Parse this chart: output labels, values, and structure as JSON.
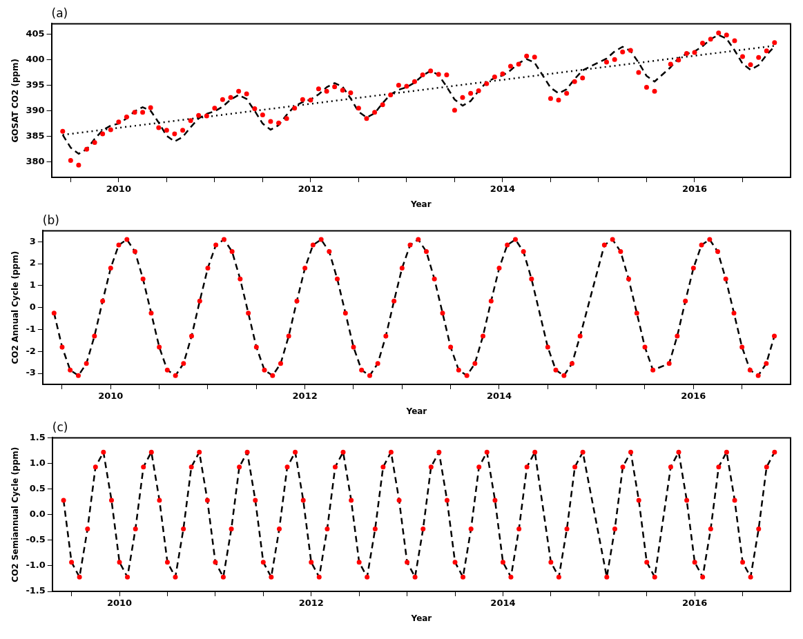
{
  "chart_data": [
    {
      "type": "line",
      "title": "(a)",
      "xlabel": "Year",
      "ylabel": "GOSAT CO2 (ppm)",
      "legend": false,
      "grid": false,
      "x": [
        2009.417,
        2009.5,
        2009.583,
        2009.667,
        2009.75,
        2009.833,
        2009.917,
        2010.0,
        2010.083,
        2010.167,
        2010.25,
        2010.333,
        2010.417,
        2010.5,
        2010.583,
        2010.667,
        2010.75,
        2010.833,
        2010.917,
        2011.0,
        2011.083,
        2011.167,
        2011.25,
        2011.333,
        2011.417,
        2011.5,
        2011.583,
        2011.667,
        2011.75,
        2011.833,
        2011.917,
        2012.0,
        2012.083,
        2012.167,
        2012.25,
        2012.333,
        2012.417,
        2012.5,
        2012.583,
        2012.667,
        2012.75,
        2012.833,
        2012.917,
        2013.0,
        2013.083,
        2013.167,
        2013.25,
        2013.333,
        2013.417,
        2013.5,
        2013.583,
        2013.667,
        2013.75,
        2013.833,
        2013.917,
        2014.0,
        2014.083,
        2014.167,
        2014.25,
        2014.333,
        2014.5,
        2014.583,
        2014.667,
        2014.75,
        2014.833,
        2015.083,
        2015.167,
        2015.25,
        2015.333,
        2015.417,
        2015.5,
        2015.583,
        2015.75,
        2015.833,
        2015.917,
        2016.0,
        2016.083,
        2016.167,
        2016.25,
        2016.333,
        2016.417,
        2016.5,
        2016.583,
        2016.667,
        2016.75,
        2016.833
      ],
      "xlim": [
        2009.3,
        2017.0
      ],
      "xticks": [
        {
          "value": 2009.5,
          "label": null
        },
        2010,
        {
          "value": 2010.5,
          "label": null
        },
        {
          "value": 2011,
          "label": null
        },
        {
          "value": 2011.5,
          "label": null
        },
        2012,
        {
          "value": 2012.5,
          "label": null
        },
        {
          "value": 2013,
          "label": null
        },
        {
          "value": 2013.5,
          "label": null
        },
        2014,
        {
          "value": 2014.5,
          "label": null
        },
        {
          "value": 2015,
          "label": null
        },
        {
          "value": 2015.5,
          "label": null
        },
        2016,
        {
          "value": 2016.5,
          "label": null
        }
      ],
      "ylim": [
        377,
        407
      ],
      "yticks": [
        380,
        385,
        390,
        395,
        400,
        405
      ],
      "series": [
        {
          "type": "scatter",
          "color": "#ff0000",
          "marker": "circle",
          "values": [
            386.0,
            380.3,
            379.4,
            382.5,
            383.8,
            385.5,
            386.3,
            387.8,
            388.8,
            389.7,
            389.7,
            390.6,
            386.7,
            386.2,
            385.5,
            386.2,
            388.1,
            389.1,
            389.0,
            390.5,
            392.2,
            392.6,
            393.8,
            393.3,
            390.4,
            389.2,
            387.9,
            387.6,
            388.5,
            390.5,
            392.2,
            392.1,
            394.3,
            393.8,
            394.7,
            394.0,
            393.5,
            390.5,
            388.5,
            389.7,
            391.2,
            393.1,
            395.0,
            394.8,
            395.7,
            397.0,
            397.8,
            397.1,
            397.0,
            390.1,
            392.6,
            393.4,
            393.9,
            395.3,
            396.6,
            397.2,
            398.7,
            399.1,
            400.7,
            400.5,
            392.4,
            392.1,
            393.4,
            395.7,
            396.4,
            399.5,
            400.0,
            401.5,
            401.8,
            397.5,
            394.6,
            393.8,
            399.1,
            399.9,
            401.2,
            401.4,
            403.2,
            404.0,
            405.2,
            404.8,
            403.7,
            400.6,
            399.0,
            400.4,
            401.7,
            403.3
          ]
        },
        {
          "type": "line",
          "color": "#000000",
          "line_style": "dashed",
          "marker": "none",
          "values": [
            385.3,
            382.8,
            381.6,
            382.5,
            384.5,
            386.2,
            387.1,
            387.5,
            388.5,
            389.9,
            390.7,
            390.0,
            387.7,
            385.1,
            384.0,
            384.9,
            386.8,
            388.5,
            389.4,
            389.9,
            390.8,
            392.2,
            393.1,
            392.3,
            390.0,
            387.5,
            386.3,
            387.2,
            389.2,
            390.9,
            391.7,
            392.2,
            393.2,
            394.6,
            395.4,
            394.7,
            392.4,
            389.8,
            388.7,
            389.5,
            391.5,
            393.2,
            394.1,
            394.6,
            395.5,
            396.9,
            397.8,
            397.0,
            394.7,
            392.2,
            391.0,
            391.9,
            393.9,
            395.6,
            396.4,
            396.9,
            397.9,
            399.3,
            400.1,
            399.4,
            394.5,
            393.4,
            394.2,
            396.2,
            397.9,
            400.2,
            401.6,
            402.5,
            401.7,
            399.4,
            396.8,
            395.7,
            398.5,
            400.3,
            401.1,
            401.6,
            402.6,
            404.0,
            404.8,
            404.1,
            401.8,
            399.2,
            398.0,
            398.9,
            400.9,
            402.6
          ]
        },
        {
          "type": "line",
          "color": "#000000",
          "line_style": "dotted",
          "marker": "none",
          "x": [
            2009.417,
            2016.833
          ],
          "values": [
            385.3,
            402.7
          ]
        }
      ]
    },
    {
      "type": "line",
      "title": "(b)",
      "xlabel": "Year",
      "ylabel": "CO2 Annual Cycle (ppm)",
      "legend": false,
      "grid": false,
      "x": [
        2009.417,
        2009.5,
        2009.583,
        2009.667,
        2009.75,
        2009.833,
        2009.917,
        2010.0,
        2010.083,
        2010.167,
        2010.25,
        2010.333,
        2010.417,
        2010.5,
        2010.583,
        2010.667,
        2010.75,
        2010.833,
        2010.917,
        2011.0,
        2011.083,
        2011.167,
        2011.25,
        2011.333,
        2011.417,
        2011.5,
        2011.583,
        2011.667,
        2011.75,
        2011.833,
        2011.917,
        2012.0,
        2012.083,
        2012.167,
        2012.25,
        2012.333,
        2012.417,
        2012.5,
        2012.583,
        2012.667,
        2012.75,
        2012.833,
        2012.917,
        2013.0,
        2013.083,
        2013.167,
        2013.25,
        2013.333,
        2013.417,
        2013.5,
        2013.583,
        2013.667,
        2013.75,
        2013.833,
        2013.917,
        2014.0,
        2014.083,
        2014.167,
        2014.25,
        2014.333,
        2014.5,
        2014.583,
        2014.667,
        2014.75,
        2014.833,
        2015.083,
        2015.167,
        2015.25,
        2015.333,
        2015.417,
        2015.5,
        2015.583,
        2015.75,
        2015.833,
        2015.917,
        2016.0,
        2016.083,
        2016.167,
        2016.25,
        2016.333,
        2016.417,
        2016.5,
        2016.583,
        2016.667,
        2016.75,
        2016.833
      ],
      "xlim": [
        2009.3,
        2017.0
      ],
      "xticks": [
        {
          "value": 2009.5,
          "label": null
        },
        2010,
        {
          "value": 2010.5,
          "label": null
        },
        {
          "value": 2011,
          "label": null
        },
        {
          "value": 2011.5,
          "label": null
        },
        2012,
        {
          "value": 2012.5,
          "label": null
        },
        {
          "value": 2013,
          "label": null
        },
        {
          "value": 2013.5,
          "label": null
        },
        2014,
        {
          "value": 2014.5,
          "label": null
        },
        {
          "value": 2015,
          "label": null
        },
        {
          "value": 2015.5,
          "label": null
        },
        2016,
        {
          "value": 2016.5,
          "label": null
        }
      ],
      "ylim": [
        -3.5,
        3.5
      ],
      "yticks": [
        -3,
        -2,
        -1,
        0,
        1,
        2,
        3
      ],
      "series": [
        {
          "type": "line",
          "color": "#000000",
          "line_style": "dashed",
          "marker": "none",
          "values": [
            -0.25,
            -1.8,
            -2.85,
            -3.1,
            -2.55,
            -1.3,
            0.3,
            1.8,
            2.85,
            3.1,
            2.55,
            1.3,
            -0.25,
            -1.8,
            -2.85,
            -3.1,
            -2.55,
            -1.3,
            0.3,
            1.8,
            2.85,
            3.1,
            2.55,
            1.3,
            -0.25,
            -1.8,
            -2.85,
            -3.1,
            -2.55,
            -1.3,
            0.3,
            1.8,
            2.85,
            3.1,
            2.55,
            1.3,
            -0.25,
            -1.8,
            -2.85,
            -3.1,
            -2.55,
            -1.3,
            0.3,
            1.8,
            2.85,
            3.1,
            2.55,
            1.3,
            -0.25,
            -1.8,
            -2.85,
            -3.1,
            -2.55,
            -1.3,
            0.3,
            1.8,
            2.85,
            3.1,
            2.55,
            1.3,
            -1.8,
            -2.85,
            -3.1,
            -2.55,
            -1.3,
            2.85,
            3.1,
            2.55,
            1.3,
            -0.25,
            -1.8,
            -2.85,
            -2.55,
            -1.3,
            0.3,
            1.8,
            2.85,
            3.1,
            2.55,
            1.3,
            -0.25,
            -1.8,
            -2.85,
            -3.1,
            -2.55,
            -1.3
          ]
        },
        {
          "type": "scatter",
          "color": "#ff0000",
          "marker": "circle",
          "values": [
            -0.25,
            -1.8,
            -2.85,
            -3.1,
            -2.55,
            -1.3,
            0.3,
            1.8,
            2.85,
            3.1,
            2.55,
            1.3,
            -0.25,
            -1.8,
            -2.85,
            -3.1,
            -2.55,
            -1.3,
            0.3,
            1.8,
            2.85,
            3.1,
            2.55,
            1.3,
            -0.25,
            -1.8,
            -2.85,
            -3.1,
            -2.55,
            -1.3,
            0.3,
            1.8,
            2.85,
            3.1,
            2.55,
            1.3,
            -0.25,
            -1.8,
            -2.85,
            -3.1,
            -2.55,
            -1.3,
            0.3,
            1.8,
            2.85,
            3.1,
            2.55,
            1.3,
            -0.25,
            -1.8,
            -2.85,
            -3.1,
            -2.55,
            -1.3,
            0.3,
            1.8,
            2.85,
            3.1,
            2.55,
            1.3,
            -1.8,
            -2.85,
            -3.1,
            -2.55,
            -1.3,
            2.85,
            3.1,
            2.55,
            1.3,
            -0.25,
            -1.8,
            -2.85,
            -2.55,
            -1.3,
            0.3,
            1.8,
            2.85,
            3.1,
            2.55,
            1.3,
            -0.25,
            -1.8,
            -2.85,
            -3.1,
            -2.55,
            -1.3
          ]
        }
      ]
    },
    {
      "type": "line",
      "title": "(c)",
      "xlabel": "Year",
      "ylabel": "CO2 Semiannual Cycle (ppm)",
      "legend": false,
      "grid": false,
      "x": [
        2009.417,
        2009.5,
        2009.583,
        2009.667,
        2009.75,
        2009.833,
        2009.917,
        2010.0,
        2010.083,
        2010.167,
        2010.25,
        2010.333,
        2010.417,
        2010.5,
        2010.583,
        2010.667,
        2010.75,
        2010.833,
        2010.917,
        2011.0,
        2011.083,
        2011.167,
        2011.25,
        2011.333,
        2011.417,
        2011.5,
        2011.583,
        2011.667,
        2011.75,
        2011.833,
        2011.917,
        2012.0,
        2012.083,
        2012.167,
        2012.25,
        2012.333,
        2012.417,
        2012.5,
        2012.583,
        2012.667,
        2012.75,
        2012.833,
        2012.917,
        2013.0,
        2013.083,
        2013.167,
        2013.25,
        2013.333,
        2013.417,
        2013.5,
        2013.583,
        2013.667,
        2013.75,
        2013.833,
        2013.917,
        2014.0,
        2014.083,
        2014.167,
        2014.25,
        2014.333,
        2014.5,
        2014.583,
        2014.667,
        2014.75,
        2014.833,
        2015.083,
        2015.167,
        2015.25,
        2015.333,
        2015.417,
        2015.5,
        2015.583,
        2015.75,
        2015.833,
        2015.917,
        2016.0,
        2016.083,
        2016.167,
        2016.25,
        2016.333,
        2016.417,
        2016.5,
        2016.583,
        2016.667,
        2016.75,
        2016.833
      ],
      "xlim": [
        2009.3,
        2017.0
      ],
      "xticks": [
        {
          "value": 2009.5,
          "label": null
        },
        2010,
        {
          "value": 2010.5,
          "label": null
        },
        {
          "value": 2011,
          "label": null
        },
        {
          "value": 2011.5,
          "label": null
        },
        2012,
        {
          "value": 2012.5,
          "label": null
        },
        {
          "value": 2013,
          "label": null
        },
        {
          "value": 2013.5,
          "label": null
        },
        2014,
        {
          "value": 2014.5,
          "label": null
        },
        {
          "value": 2015,
          "label": null
        },
        {
          "value": 2015.5,
          "label": null
        },
        2016,
        {
          "value": 2016.5,
          "label": null
        }
      ],
      "ylim": [
        -1.5,
        1.5
      ],
      "yticks": [
        -1.5,
        {
          "value": -1,
          "label": "-1.0"
        },
        -0.5,
        {
          "value": 0,
          "label": "0.0"
        },
        0.5,
        {
          "value": 1,
          "label": "1.0"
        },
        1.5
      ],
      "series": [
        {
          "type": "line",
          "color": "#000000",
          "line_style": "dashed",
          "marker": "none",
          "values": [
            0.28,
            -0.93,
            -1.22,
            -0.28,
            0.93,
            1.22,
            0.28,
            -0.93,
            -1.22,
            -0.28,
            0.93,
            1.22,
            0.28,
            -0.93,
            -1.22,
            -0.28,
            0.93,
            1.22,
            0.28,
            -0.93,
            -1.22,
            -0.28,
            0.93,
            1.22,
            0.28,
            -0.93,
            -1.22,
            -0.28,
            0.93,
            1.22,
            0.28,
            -0.93,
            -1.22,
            -0.28,
            0.93,
            1.22,
            0.28,
            -0.93,
            -1.22,
            -0.28,
            0.93,
            1.22,
            0.28,
            -0.93,
            -1.22,
            -0.28,
            0.93,
            1.22,
            0.28,
            -0.93,
            -1.22,
            -0.28,
            0.93,
            1.22,
            0.28,
            -0.93,
            -1.22,
            -0.28,
            0.93,
            1.22,
            -0.93,
            -1.22,
            -0.28,
            0.93,
            1.22,
            -1.22,
            -0.28,
            0.93,
            1.22,
            0.28,
            -0.93,
            -1.22,
            0.93,
            1.22,
            0.28,
            -0.93,
            -1.22,
            -0.28,
            0.93,
            1.22,
            0.28,
            -0.93,
            -1.22,
            -0.28,
            0.93,
            1.22
          ]
        },
        {
          "type": "scatter",
          "color": "#ff0000",
          "marker": "circle",
          "values": [
            0.28,
            -0.93,
            -1.22,
            -0.28,
            0.93,
            1.22,
            0.28,
            -0.93,
            -1.22,
            -0.28,
            0.93,
            1.22,
            0.28,
            -0.93,
            -1.22,
            -0.28,
            0.93,
            1.22,
            0.28,
            -0.93,
            -1.22,
            -0.28,
            0.93,
            1.22,
            0.28,
            -0.93,
            -1.22,
            -0.28,
            0.93,
            1.22,
            0.28,
            -0.93,
            -1.22,
            -0.28,
            0.93,
            1.22,
            0.28,
            -0.93,
            -1.22,
            -0.28,
            0.93,
            1.22,
            0.28,
            -0.93,
            -1.22,
            -0.28,
            0.93,
            1.22,
            0.28,
            -0.93,
            -1.22,
            -0.28,
            0.93,
            1.22,
            0.28,
            -0.93,
            -1.22,
            -0.28,
            0.93,
            1.22,
            -0.93,
            -1.22,
            -0.28,
            0.93,
            1.22,
            -1.22,
            -0.28,
            0.93,
            1.22,
            0.28,
            -0.93,
            -1.22,
            0.93,
            1.22,
            0.28,
            -0.93,
            -1.22,
            -0.28,
            0.93,
            1.22,
            0.28,
            -0.93,
            -1.22,
            -0.28,
            0.93,
            1.22
          ]
        }
      ]
    }
  ]
}
